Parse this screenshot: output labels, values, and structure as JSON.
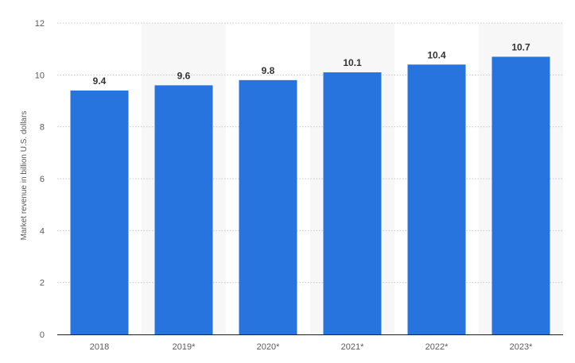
{
  "chart_data": {
    "type": "bar",
    "categories": [
      "2018",
      "2019*",
      "2020*",
      "2021*",
      "2022*",
      "2023*"
    ],
    "values": [
      9.4,
      9.6,
      9.8,
      10.1,
      10.4,
      10.7
    ],
    "value_labels": [
      "9.4",
      "9.6",
      "9.8",
      "10.1",
      "10.4",
      "10.7"
    ],
    "title": "",
    "xlabel": "",
    "ylabel": "Market revenue in billion U.S. dollars",
    "ylim": [
      0,
      12
    ],
    "yticks": [
      0,
      2,
      4,
      6,
      8,
      10,
      12
    ],
    "ytick_labels": [
      "0",
      "2",
      "4",
      "6",
      "8",
      "10",
      "12"
    ],
    "grid": true,
    "shaded_bands": [
      "2019*",
      "2021*",
      "2023*"
    ],
    "colors": {
      "bar": "#2874df",
      "band": "#f7f7f7",
      "grid": "#c8c8c8",
      "axis": "#222222"
    }
  }
}
